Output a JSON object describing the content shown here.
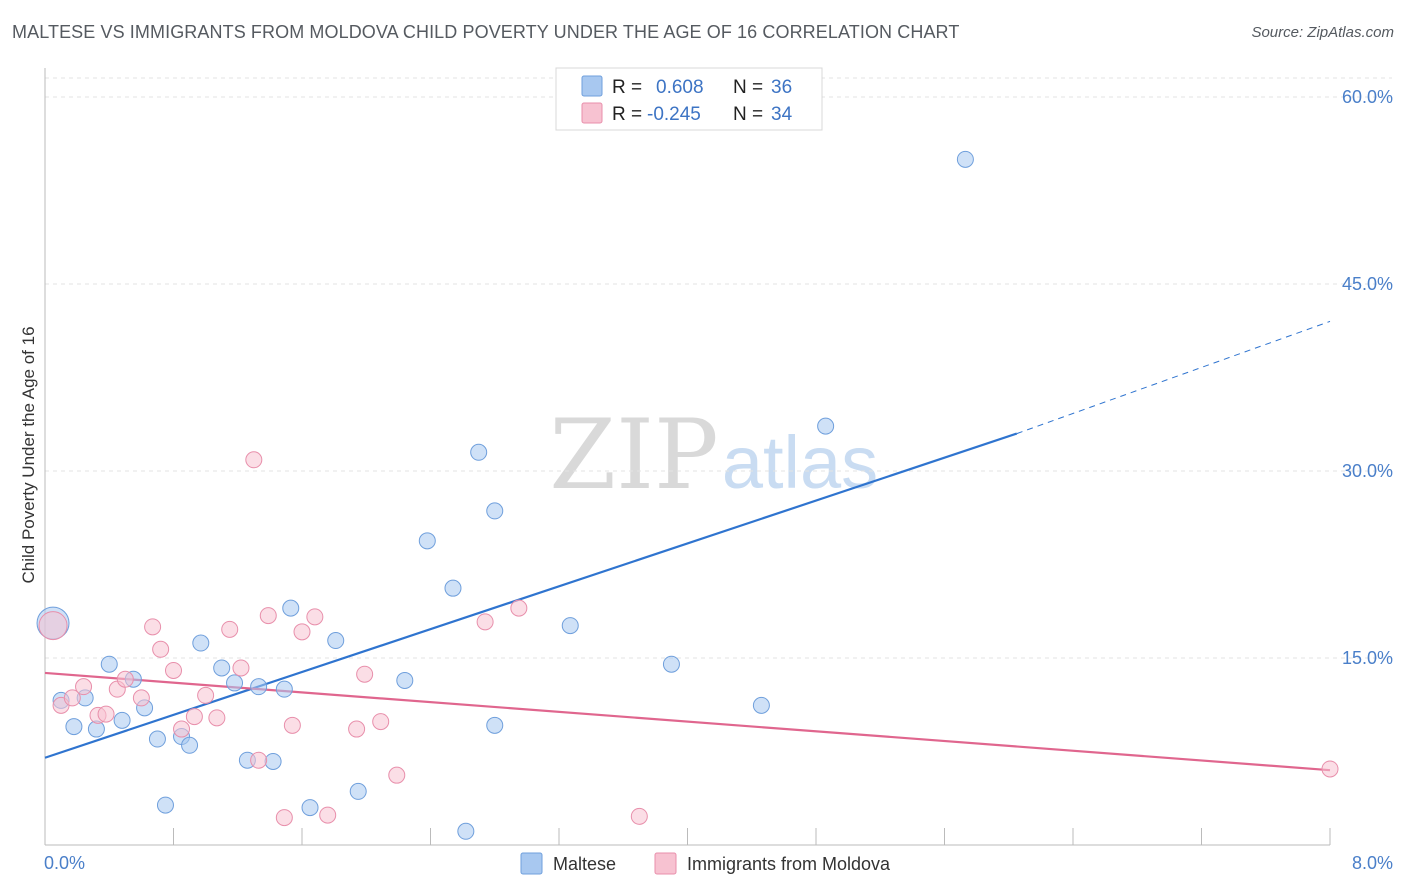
{
  "title": "MALTESE VS IMMIGRANTS FROM MOLDOVA CHILD POVERTY UNDER THE AGE OF 16 CORRELATION CHART",
  "source": "Source: ZipAtlas.com",
  "watermark": {
    "zip": "ZIP",
    "atlas": "atlas"
  },
  "chart_data": {
    "type": "scatter",
    "title": "MALTESE VS IMMIGRANTS FROM MOLDOVA CHILD POVERTY UNDER THE AGE OF 16 CORRELATION CHART",
    "xlabel": "",
    "ylabel": "Child Poverty Under the Age of 16",
    "xlim": [
      0,
      8
    ],
    "ylim": [
      0,
      62
    ],
    "x_tick_labels": [
      "0.0%",
      "8.0%"
    ],
    "y_ticks": [
      15,
      30,
      45,
      60
    ],
    "y_tick_labels": [
      "15.0%",
      "30.0%",
      "45.0%",
      "60.0%"
    ],
    "grid": true,
    "legend_position": "top-center",
    "series": [
      {
        "name": "Maltese",
        "color": "#a8c8f0",
        "edge": "#6f9fdc",
        "line_color": "#2f74cf",
        "R": "0.608",
        "N": "36",
        "trend": {
          "x0": 0.0,
          "y0": 7.0,
          "x1": 6.05,
          "y1": 33.0,
          "dash_to_x": 8.0,
          "dash_to_y": 42.0
        },
        "points": [
          [
            0.05,
            17.8,
            16
          ],
          [
            0.1,
            11.6,
            8
          ],
          [
            0.18,
            9.5,
            8
          ],
          [
            0.25,
            11.8,
            8
          ],
          [
            0.32,
            9.3,
            8
          ],
          [
            0.4,
            14.5,
            8
          ],
          [
            0.48,
            10.0,
            8
          ],
          [
            0.55,
            13.3,
            8
          ],
          [
            0.62,
            11.0,
            8
          ],
          [
            0.7,
            8.5,
            8
          ],
          [
            0.75,
            3.2,
            8
          ],
          [
            0.85,
            8.7,
            8
          ],
          [
            0.9,
            8.0,
            8
          ],
          [
            0.97,
            16.2,
            8
          ],
          [
            1.1,
            14.2,
            8
          ],
          [
            1.18,
            13.0,
            8
          ],
          [
            1.26,
            6.8,
            8
          ],
          [
            1.33,
            12.7,
            8
          ],
          [
            1.42,
            6.7,
            8
          ],
          [
            1.49,
            12.5,
            8
          ],
          [
            1.53,
            19.0,
            8
          ],
          [
            1.65,
            3.0,
            8
          ],
          [
            1.81,
            16.4,
            8
          ],
          [
            1.95,
            4.3,
            8
          ],
          [
            2.24,
            13.2,
            8
          ],
          [
            2.38,
            24.4,
            8
          ],
          [
            2.54,
            20.6,
            8
          ],
          [
            2.62,
            1.1,
            8
          ],
          [
            2.7,
            31.5,
            8
          ],
          [
            2.8,
            9.6,
            8
          ],
          [
            2.8,
            26.8,
            8
          ],
          [
            3.27,
            17.6,
            8
          ],
          [
            3.9,
            14.5,
            8
          ],
          [
            4.46,
            11.2,
            8
          ],
          [
            4.86,
            33.6,
            8
          ],
          [
            5.73,
            55.0,
            8
          ]
        ]
      },
      {
        "name": "Immigrants from Moldova",
        "color": "#f7c2d1",
        "edge": "#e88fab",
        "line_color": "#e0668e",
        "R": "-0.245",
        "N": "34",
        "trend": {
          "x0": 0.0,
          "y0": 13.8,
          "x1": 8.0,
          "y1": 6.0
        },
        "points": [
          [
            0.05,
            17.6,
            14
          ],
          [
            0.1,
            11.2,
            8
          ],
          [
            0.17,
            11.8,
            8
          ],
          [
            0.24,
            12.7,
            8
          ],
          [
            0.33,
            10.4,
            8
          ],
          [
            0.38,
            10.5,
            8
          ],
          [
            0.45,
            12.5,
            8
          ],
          [
            0.5,
            13.3,
            8
          ],
          [
            0.6,
            11.8,
            8
          ],
          [
            0.67,
            17.5,
            8
          ],
          [
            0.72,
            15.7,
            8
          ],
          [
            0.8,
            14.0,
            8
          ],
          [
            0.85,
            9.3,
            8
          ],
          [
            0.93,
            10.3,
            8
          ],
          [
            1.0,
            12.0,
            8
          ],
          [
            1.07,
            10.2,
            8
          ],
          [
            1.15,
            17.3,
            8
          ],
          [
            1.22,
            14.2,
            8
          ],
          [
            1.3,
            30.9,
            8
          ],
          [
            1.33,
            6.8,
            8
          ],
          [
            1.39,
            18.4,
            8
          ],
          [
            1.49,
            2.2,
            8
          ],
          [
            1.54,
            9.6,
            8
          ],
          [
            1.6,
            17.1,
            8
          ],
          [
            1.68,
            18.3,
            8
          ],
          [
            1.76,
            2.4,
            8
          ],
          [
            1.94,
            9.3,
            8
          ],
          [
            1.99,
            13.7,
            8
          ],
          [
            2.09,
            9.9,
            8
          ],
          [
            2.19,
            5.6,
            8
          ],
          [
            2.74,
            17.9,
            8
          ],
          [
            2.95,
            19.0,
            8
          ],
          [
            3.7,
            2.3,
            8
          ],
          [
            8.0,
            6.1,
            8
          ]
        ]
      }
    ]
  },
  "legend": {
    "r_label": "R =",
    "n_label": "N ="
  }
}
